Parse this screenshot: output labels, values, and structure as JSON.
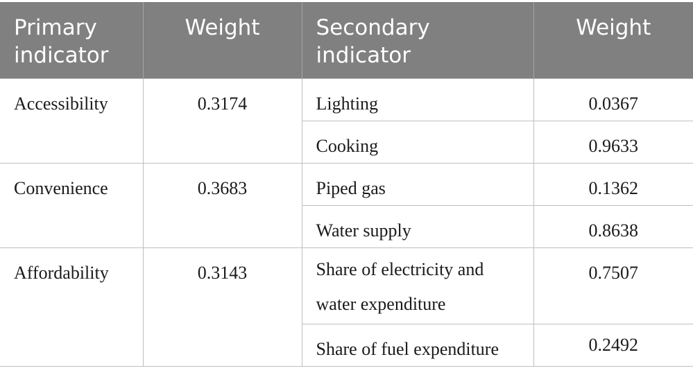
{
  "headers": {
    "primary": "Primary indicator",
    "primary_weight": "Weight",
    "secondary": "Secondary indicator",
    "secondary_weight": "Weight"
  },
  "groups": [
    {
      "primary": "Accessibility",
      "weight": "0.3174",
      "secondary": [
        {
          "name": "Lighting",
          "weight": "0.0367"
        },
        {
          "name": "Cooking",
          "weight": "0.9633"
        }
      ]
    },
    {
      "primary": "Convenience",
      "weight": "0.3683",
      "secondary": [
        {
          "name": "Piped gas",
          "weight": "0.1362"
        },
        {
          "name": "Water supply",
          "weight": "0.8638"
        }
      ]
    },
    {
      "primary": "Affordability",
      "weight": "0.3143",
      "secondary": [
        {
          "name": "Share of electricity and water expenditure",
          "weight": "0.7507"
        },
        {
          "name": "Share of fuel expenditure",
          "weight": "0.2492"
        }
      ]
    }
  ]
}
